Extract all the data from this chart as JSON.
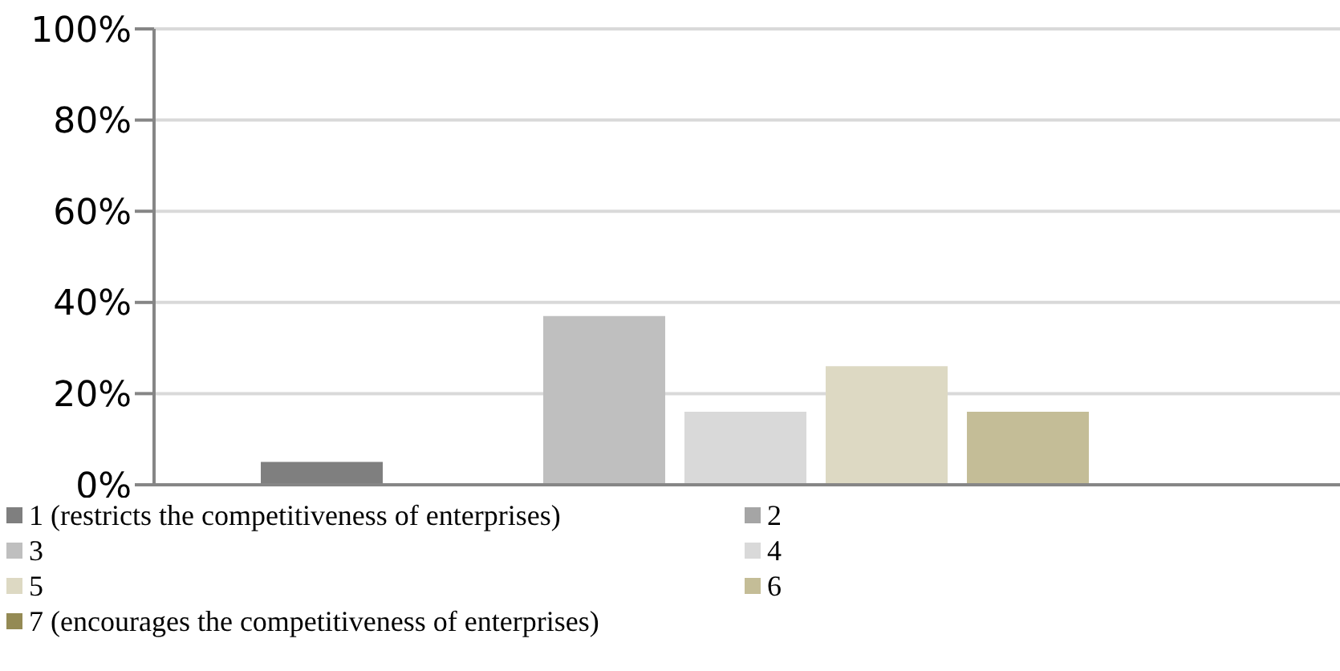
{
  "chart_data": {
    "type": "bar",
    "categories": [
      null
    ],
    "series": [
      {
        "name": "1 (restricts the competitiveness of enterprises)",
        "color": "#7f7f7f",
        "values": [
          5
        ]
      },
      {
        "name": "2",
        "color": "#a5a5a5",
        "values": [
          0
        ]
      },
      {
        "name": "3",
        "color": "#bfbfbf",
        "values": [
          37
        ]
      },
      {
        "name": "4",
        "color": "#d9d9d9",
        "values": [
          16
        ]
      },
      {
        "name": "5",
        "color": "#ddd9c3",
        "values": [
          26
        ]
      },
      {
        "name": "6",
        "color": "#c4bd97",
        "values": [
          16
        ]
      },
      {
        "name": "7 (encourages the competitiveness of enterprises)",
        "color": "#948a54",
        "values": [
          0
        ]
      }
    ],
    "ylim": [
      0,
      100
    ],
    "yticks": [
      {
        "value": 0,
        "label": "0%"
      },
      {
        "value": 20,
        "label": "20%"
      },
      {
        "value": 40,
        "label": "40%"
      },
      {
        "value": 60,
        "label": "60%"
      },
      {
        "value": 80,
        "label": "80%"
      },
      {
        "value": 100,
        "label": "100%"
      }
    ],
    "grid": "y",
    "legend": "bottom"
  }
}
